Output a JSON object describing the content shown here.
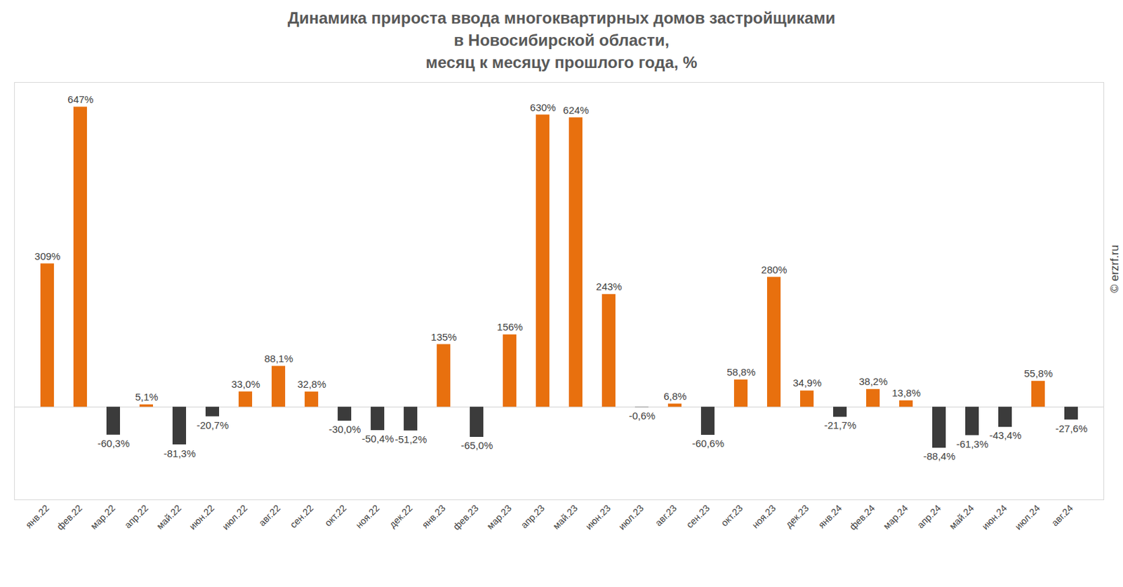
{
  "chart_data": {
    "type": "bar",
    "title": "Динамика прироста ввода многоквартирных домов застройщиками\nв Новосибирской области,\nмесяц к месяцу прошлого года, %",
    "categories": [
      "янв.22",
      "фев.22",
      "мар.22",
      "апр.22",
      "май.22",
      "июн.22",
      "июл.22",
      "авг.22",
      "сен.22",
      "окт.22",
      "ноя.22",
      "дек.22",
      "янв.23",
      "фев.23",
      "мар.23",
      "апр.23",
      "май.23",
      "июн.23",
      "июл.23",
      "авг.23",
      "сен.23",
      "окт.23",
      "ноя.23",
      "дек.23",
      "янв.24",
      "фев.24",
      "мар.24",
      "апр.24",
      "май.24",
      "июн.24",
      "июл.24",
      "авг.24"
    ],
    "values": [
      309,
      647,
      -60.3,
      5.1,
      -81.3,
      -20.7,
      33.0,
      88.1,
      32.8,
      -30.0,
      -50.4,
      -51.2,
      135,
      -65.0,
      156,
      630,
      624,
      243,
      -0.6,
      6.8,
      -60.6,
      58.8,
      280,
      34.9,
      -21.7,
      38.2,
      13.8,
      -88.4,
      -61.3,
      -43.4,
      55.8,
      -27.6
    ],
    "value_labels": [
      "309%",
      "647%",
      "-60,3%",
      "5,1%",
      "-81,3%",
      "-20,7%",
      "33,0%",
      "88,1%",
      "32,8%",
      "-30,0%",
      "-50,4%",
      "-51,2%",
      "135%",
      "-65,0%",
      "156%",
      "630%",
      "624%",
      "243%",
      "-0,6%",
      "6,8%",
      "-60,6%",
      "58,8%",
      "280%",
      "34,9%",
      "-21,7%",
      "38,2%",
      "13,8%",
      "-88,4%",
      "-61,3%",
      "-43,4%",
      "55,8%",
      "-27,6%"
    ],
    "colors": [
      "#e8700e",
      "#e8700e",
      "#3b3b3b",
      "#e8700e",
      "#3b3b3b",
      "#3b3b3b",
      "#e8700e",
      "#e8700e",
      "#e8700e",
      "#3b3b3b",
      "#3b3b3b",
      "#3b3b3b",
      "#e8700e",
      "#3b3b3b",
      "#e8700e",
      "#e8700e",
      "#e8700e",
      "#e8700e",
      "#3b3b3b",
      "#e8700e",
      "#3b3b3b",
      "#e8700e",
      "#e8700e",
      "#e8700e",
      "#3b3b3b",
      "#e8700e",
      "#e8700e",
      "#3b3b3b",
      "#3b3b3b",
      "#3b3b3b",
      "#e8700e",
      "#3b3b3b"
    ],
    "ylim": [
      -200,
      700
    ],
    "data_labels": true,
    "tick_labels": "x",
    "annotations": [
      "© erzrf.ru"
    ]
  }
}
